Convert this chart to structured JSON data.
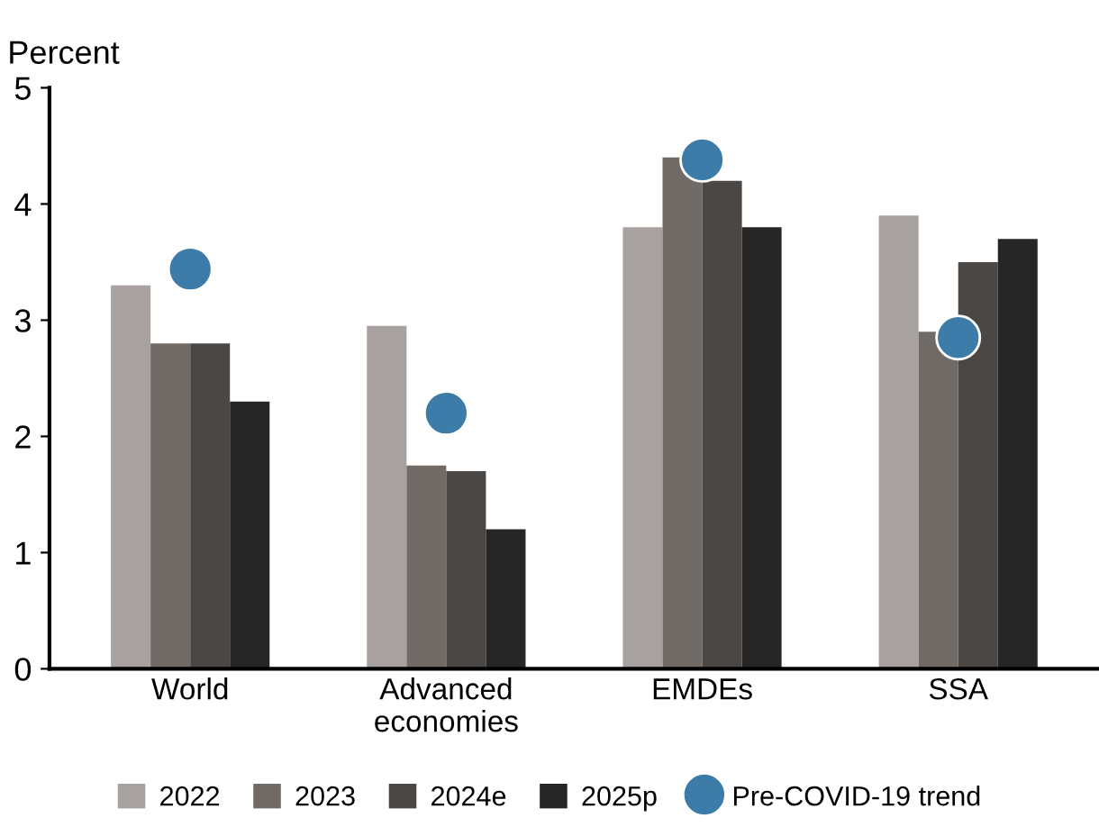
{
  "chart_data": {
    "type": "bar",
    "ylabel": "Percent",
    "categories": [
      "World",
      "Advanced\neconomies",
      "EMDEs",
      "SSA"
    ],
    "series": [
      {
        "name": "2022",
        "color": "#a7a29f",
        "values": [
          3.3,
          2.95,
          3.8,
          3.9
        ]
      },
      {
        "name": "2023",
        "color": "#716b67",
        "values": [
          2.8,
          1.75,
          4.4,
          2.9
        ]
      },
      {
        "name": "2024e",
        "color": "#4a4745",
        "values": [
          2.8,
          1.7,
          4.2,
          3.5
        ]
      },
      {
        "name": "2025p",
        "color": "#262626",
        "values": [
          2.3,
          1.2,
          3.8,
          3.7
        ]
      },
      {
        "name": "Pre-COVID-19 trend",
        "type": "scatter",
        "marker": "circle",
        "color": "#3d7ba8",
        "x": [
          "World",
          "Advanced\neconomies",
          "EMDEs",
          "SSA"
        ],
        "values": [
          3.44,
          2.2,
          4.38,
          2.85
        ]
      }
    ],
    "ylim": [
      0,
      5
    ],
    "yticks": [
      0,
      1,
      2,
      3,
      4,
      5
    ],
    "grid": false,
    "legend": "bottom"
  }
}
